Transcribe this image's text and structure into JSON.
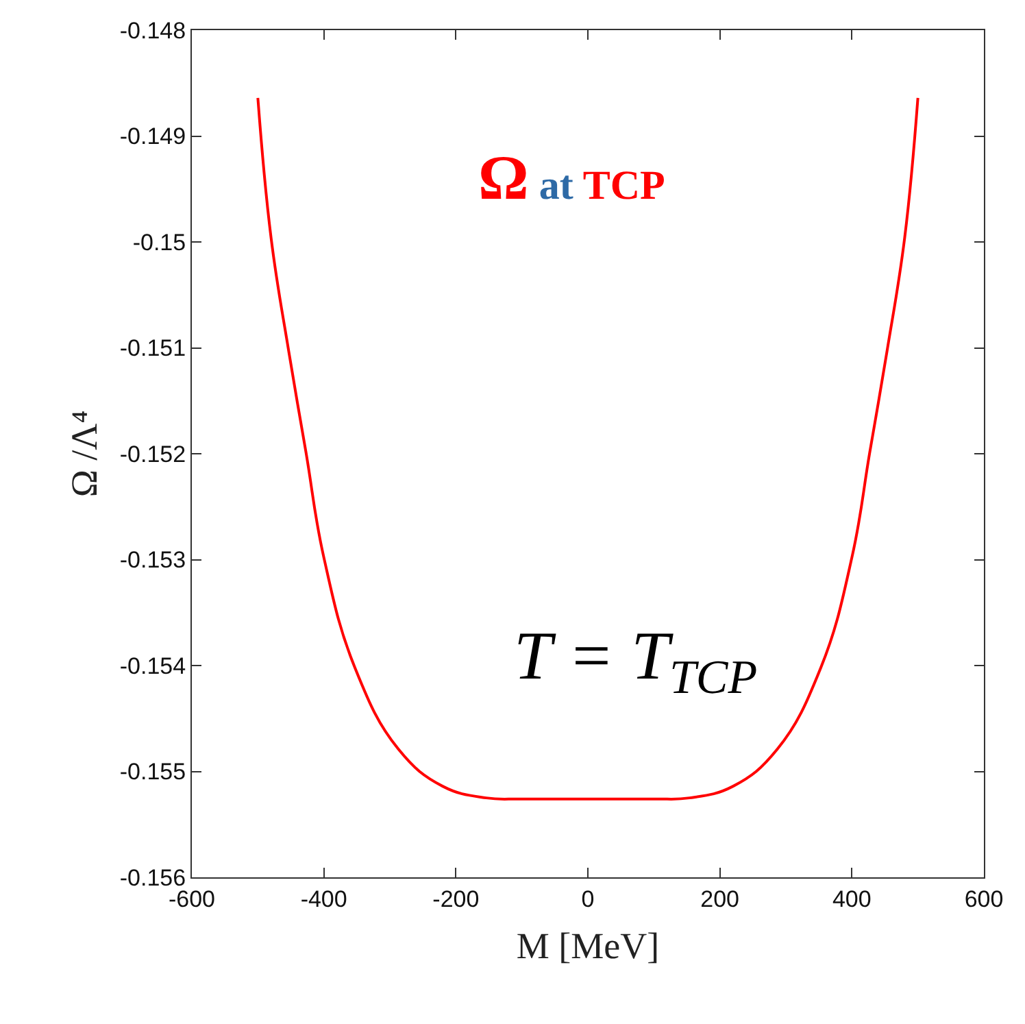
{
  "chart_data": {
    "type": "line",
    "xlabel": "M [MeV]",
    "ylabel": "Ω /Λ⁴",
    "annotations": [
      "Ω at TCP",
      "T = T$_{TCP}$"
    ],
    "series": [
      {
        "color": "#ff0000",
        "x": [
          -500,
          -480,
          -453,
          -427,
          -400,
          -353,
          -287,
          -220,
          -154,
          -100,
          0,
          100,
          154,
          220,
          287,
          353,
          400,
          427,
          453,
          480,
          500
        ],
        "values": [
          -0.14864,
          -0.14996,
          -0.15104,
          -0.15199,
          -0.15298,
          -0.15402,
          -0.15479,
          -0.15514,
          -0.15525,
          -0.15526,
          -0.15526,
          -0.15526,
          -0.15525,
          -0.15514,
          -0.15479,
          -0.15402,
          -0.15298,
          -0.15199,
          -0.15104,
          -0.14996,
          -0.14864
        ]
      }
    ],
    "xlim": [
      -600,
      600
    ],
    "xticks": [
      -600,
      -400,
      -200,
      0,
      200,
      400,
      600
    ],
    "ylim": [
      -0.156,
      -0.148
    ],
    "yticks": [
      -0.156,
      -0.155,
      -0.154,
      -0.153,
      -0.152,
      -0.151,
      -0.15,
      -0.149,
      -0.148
    ],
    "marker": "none",
    "line_style": "solid"
  }
}
